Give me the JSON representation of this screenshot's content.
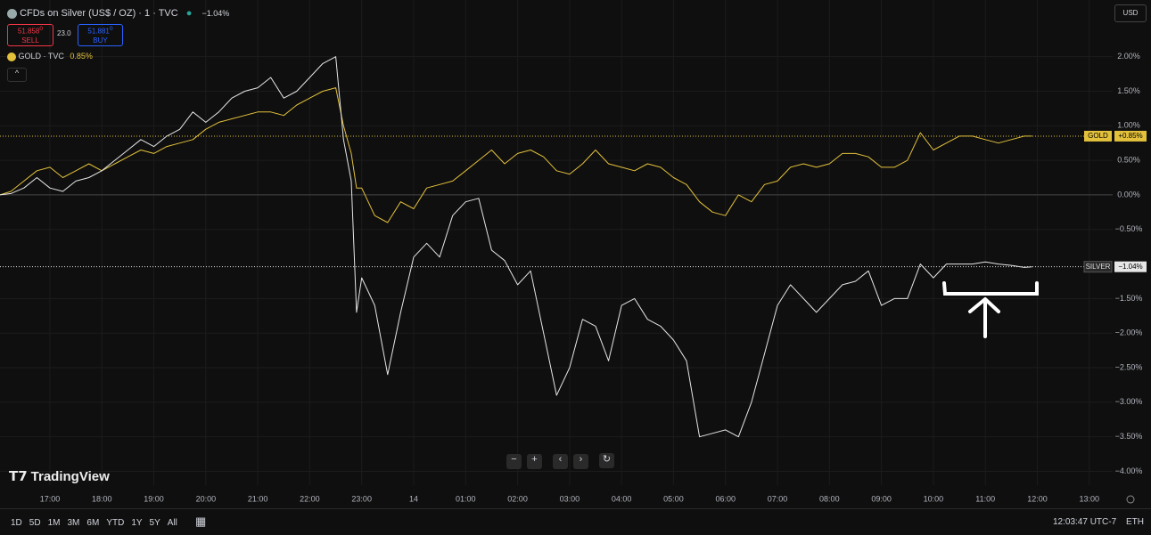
{
  "header": {
    "symbol": "CFDs on Silver (US$ / OZ) · 1 · TVC",
    "change": "−1.04%",
    "sell_price": "51.858",
    "sell_sup": "0",
    "sell": "SELL",
    "spread": "23.0",
    "buy_price": "51.881",
    "buy_sup": "0",
    "buy": "BUY",
    "compare_symbol": "GOLD · TVC",
    "compare_change": "0.85%",
    "currency": "USD"
  },
  "chart_data": {
    "type": "line",
    "x": [
      16.04,
      16.25,
      16.5,
      16.75,
      17,
      17.25,
      17.5,
      17.75,
      18,
      18.25,
      18.5,
      18.75,
      19,
      19.25,
      19.5,
      19.75,
      20,
      20.25,
      20.5,
      20.75,
      21,
      21.25,
      21.5,
      21.75,
      22,
      22.25,
      22.5,
      22.65,
      22.8,
      22.9,
      23,
      23.25,
      23.5,
      23.75,
      24,
      24.25,
      24.5,
      24.75,
      25,
      25.25,
      25.5,
      25.75,
      26,
      26.25,
      26.5,
      26.75,
      27,
      27.25,
      27.5,
      27.75,
      28,
      28.25,
      28.5,
      28.75,
      29,
      29.25,
      29.5,
      29.75,
      30,
      30.25,
      30.5,
      30.75,
      31,
      31.25,
      31.5,
      31.75,
      32,
      32.25,
      32.5,
      32.75,
      33,
      33.25,
      33.5,
      33.75,
      34,
      34.25,
      34.5,
      34.75,
      35,
      35.25,
      35.5,
      35.75,
      35.9
    ],
    "series": [
      {
        "name": "GOLD",
        "color": "#e3c13b",
        "last": {
          "value": 0.85,
          "label": "+0.85%"
        },
        "values": [
          0,
          0.05,
          0.2,
          0.35,
          0.4,
          0.25,
          0.35,
          0.45,
          0.35,
          0.45,
          0.55,
          0.65,
          0.6,
          0.7,
          0.75,
          0.8,
          0.95,
          1.05,
          1.1,
          1.15,
          1.2,
          1.2,
          1.15,
          1.3,
          1.4,
          1.5,
          1.55,
          1.0,
          0.6,
          0.1,
          0.1,
          -0.3,
          -0.4,
          -0.1,
          -0.2,
          0.1,
          0.15,
          0.2,
          0.35,
          0.5,
          0.65,
          0.45,
          0.6,
          0.65,
          0.55,
          0.35,
          0.3,
          0.45,
          0.65,
          0.45,
          0.4,
          0.35,
          0.45,
          0.4,
          0.25,
          0.15,
          -0.1,
          -0.25,
          -0.3,
          0,
          -0.1,
          0.15,
          0.2,
          0.4,
          0.45,
          0.4,
          0.45,
          0.6,
          0.6,
          0.55,
          0.4,
          0.4,
          0.5,
          0.9,
          0.65,
          0.75,
          0.85,
          0.85,
          0.8,
          0.75,
          0.8,
          0.85,
          0.85
        ]
      },
      {
        "name": "SILVER",
        "color": "#e6e6e6",
        "last": {
          "value": -1.04,
          "label": "−1.04%"
        },
        "values": [
          0,
          0.02,
          0.1,
          0.25,
          0.1,
          0.05,
          0.2,
          0.25,
          0.35,
          0.5,
          0.65,
          0.8,
          0.7,
          0.85,
          0.95,
          1.2,
          1.05,
          1.2,
          1.4,
          1.5,
          1.55,
          1.7,
          1.4,
          1.5,
          1.7,
          1.9,
          2.0,
          0.8,
          0.2,
          -1.7,
          -1.2,
          -1.6,
          -2.6,
          -1.7,
          -0.9,
          -0.7,
          -0.9,
          -0.3,
          -0.1,
          -0.05,
          -0.8,
          -0.95,
          -1.3,
          -1.1,
          -2.0,
          -2.9,
          -2.5,
          -1.8,
          -1.9,
          -2.4,
          -1.6,
          -1.5,
          -1.8,
          -1.9,
          -2.1,
          -2.4,
          -3.5,
          -3.45,
          -3.4,
          -3.5,
          -3.0,
          -2.3,
          -1.6,
          -1.3,
          -1.5,
          -1.7,
          -1.5,
          -1.3,
          -1.25,
          -1.1,
          -1.6,
          -1.5,
          -1.5,
          -1.0,
          -1.2,
          -1.0,
          -1.0,
          -1.0,
          -0.97,
          -1.0,
          -1.02,
          -1.05,
          -1.04
        ]
      }
    ],
    "xlim": [
      16.04,
      37.45
    ],
    "xticks": [
      {
        "value": 17,
        "label": "17:00"
      },
      {
        "value": 18,
        "label": "18:00"
      },
      {
        "value": 19,
        "label": "19:00"
      },
      {
        "value": 20,
        "label": "20:00"
      },
      {
        "value": 21,
        "label": "21:00"
      },
      {
        "value": 22,
        "label": "22:00"
      },
      {
        "value": 23,
        "label": "23:00"
      },
      {
        "value": 24,
        "label": "14"
      },
      {
        "value": 25,
        "label": "01:00"
      },
      {
        "value": 26,
        "label": "02:00"
      },
      {
        "value": 27,
        "label": "03:00"
      },
      {
        "value": 28,
        "label": "04:00"
      },
      {
        "value": 29,
        "label": "05:00"
      },
      {
        "value": 30,
        "label": "06:00"
      },
      {
        "value": 31,
        "label": "07:00"
      },
      {
        "value": 32,
        "label": "08:00"
      },
      {
        "value": 33,
        "label": "09:00"
      },
      {
        "value": 34,
        "label": "10:00"
      },
      {
        "value": 35,
        "label": "11:00"
      },
      {
        "value": 36,
        "label": "12:00"
      },
      {
        "value": 37,
        "label": "13:00"
      }
    ],
    "ylim": [
      -4.2,
      2.82
    ],
    "yticks": [
      {
        "value": 2,
        "label": "2.00%"
      },
      {
        "value": 1.5,
        "label": "1.50%"
      },
      {
        "value": 1,
        "label": "1.00%"
      },
      {
        "value": 0.5,
        "label": "0.50%"
      },
      {
        "value": 0,
        "label": "0.00%"
      },
      {
        "value": -0.5,
        "label": "−0.50%"
      },
      {
        "value": -1.5,
        "label": "−1.50%"
      },
      {
        "value": -2,
        "label": "−2.00%"
      },
      {
        "value": -2.5,
        "label": "−2.50%"
      },
      {
        "value": -3,
        "label": "−3.00%"
      },
      {
        "value": -3.5,
        "label": "−3.50%"
      },
      {
        "value": -4,
        "label": "−4.00%"
      }
    ],
    "grid": true
  },
  "footer": {
    "ranges": [
      "1D",
      "5D",
      "1M",
      "3M",
      "6M",
      "YTD",
      "1Y",
      "5Y",
      "All"
    ],
    "clock": "12:03:47 UTC-7",
    "session": "ETH",
    "brand": "TradingView"
  }
}
